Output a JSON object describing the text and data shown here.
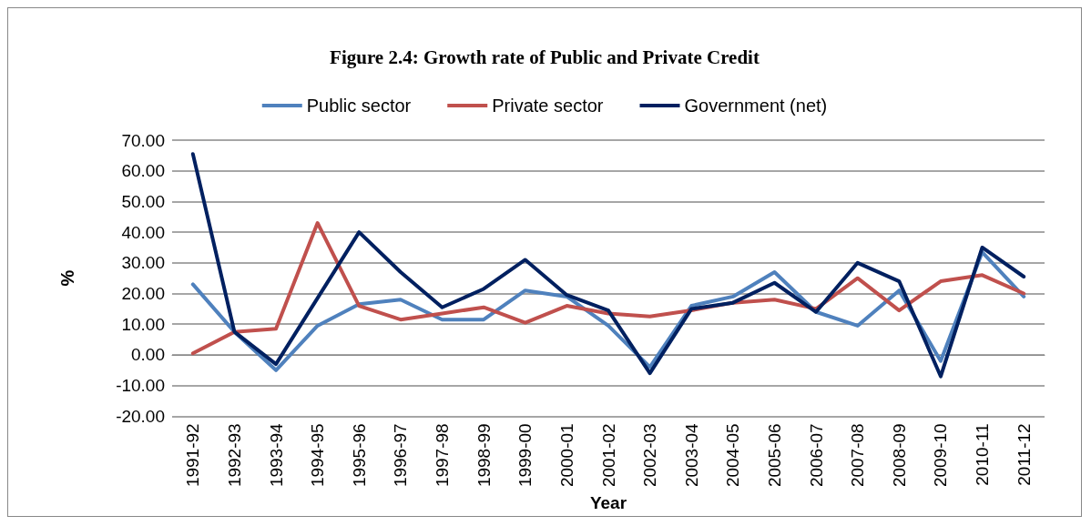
{
  "chart_data": {
    "type": "line",
    "title": "Figure 2.4: Growth rate of Public and Private Credit",
    "xlabel": "Year",
    "ylabel": "%",
    "categories": [
      "1991-92",
      "1992-93",
      "1993-94",
      "1994-95",
      "1995-96",
      "1996-97",
      "1997-98",
      "1998-99",
      "1999-00",
      "2000-01",
      "2001-02",
      "2002-03",
      "2003-04",
      "2004-05",
      "2005-06",
      "2006-07",
      "2007-08",
      "2008-09",
      "2009-10",
      "2010-11",
      "2011-12"
    ],
    "series": [
      {
        "name": "Public sector",
        "color": "#4f81bd",
        "values": [
          23,
          7.5,
          -5,
          9.5,
          16.5,
          18,
          11.5,
          11.5,
          21,
          19,
          9.5,
          -4,
          16,
          19,
          27,
          14,
          9.5,
          21,
          -2,
          33.5,
          19
        ]
      },
      {
        "name": "Private sector",
        "color": "#c0504d",
        "values": [
          0.5,
          7.5,
          8.5,
          43,
          16,
          11.5,
          13.5,
          15.5,
          10.5,
          16,
          13.5,
          12.5,
          14.5,
          17,
          18,
          15,
          25,
          14.5,
          24,
          26,
          20
        ]
      },
      {
        "name": "Government (net)",
        "color": "#002060",
        "values": [
          65.5,
          7.5,
          -3,
          18.5,
          40,
          27,
          15.5,
          21.5,
          31,
          19.5,
          14.5,
          -6,
          15,
          17,
          23.5,
          14,
          30,
          24,
          -7,
          35,
          25.5
        ]
      }
    ],
    "ylim": [
      -20,
      70
    ],
    "yticks": [
      {
        "value": -20,
        "label": "-20.00"
      },
      {
        "value": -10,
        "label": "-10.00"
      },
      {
        "value": 0,
        "label": "0.00"
      },
      {
        "value": 10,
        "label": "10.00"
      },
      {
        "value": 20,
        "label": "20.00"
      },
      {
        "value": 30,
        "label": "30.00"
      },
      {
        "value": 40,
        "label": "40.00"
      },
      {
        "value": 50,
        "label": "50.00"
      },
      {
        "value": 60,
        "label": "60.00"
      },
      {
        "value": 70,
        "label": "70.00"
      }
    ],
    "grid": "y",
    "legend": "top",
    "marker": "none",
    "line_style": "solid"
  }
}
